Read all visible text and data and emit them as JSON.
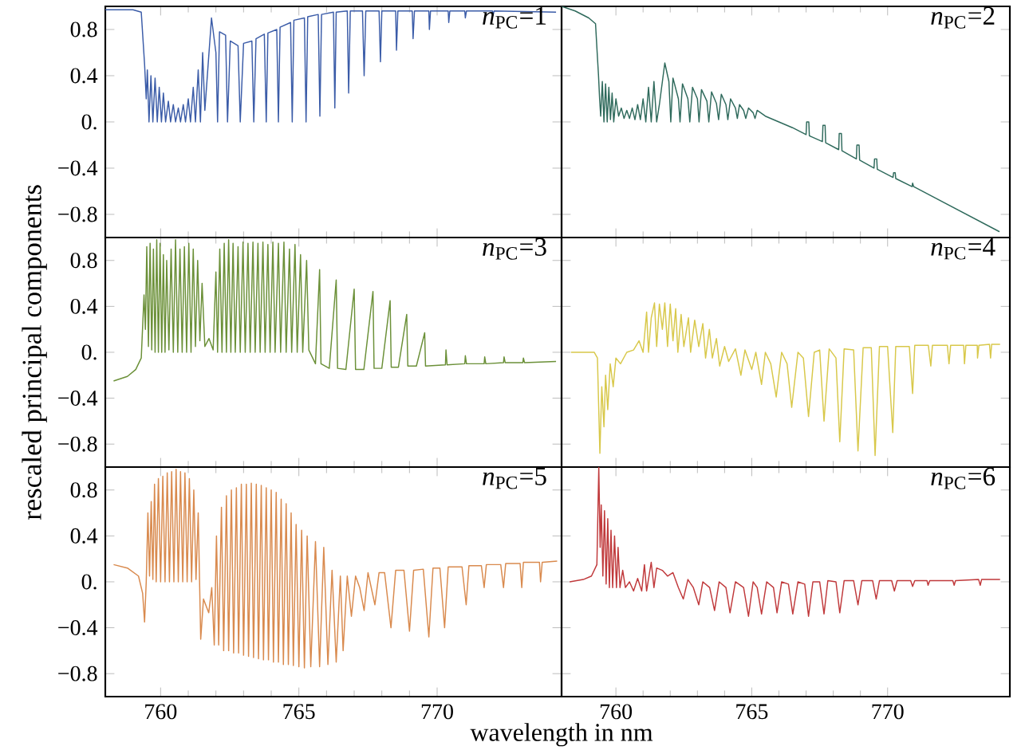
{
  "chart_data": [
    {
      "type": "line",
      "title": "*n*$_{PC}$=1",
      "color": "#3b5ca8",
      "xlim": [
        758,
        774.5
      ],
      "ylim": [
        -1,
        1
      ],
      "xticks": [
        760,
        765,
        770
      ],
      "yticks": [
        {
          "value": -0.8,
          "label": "−0.8"
        },
        {
          "value": -0.4,
          "label": "−0.4"
        },
        {
          "value": 0,
          "label": "0."
        },
        {
          "value": 0.4,
          "label": "0.4"
        },
        {
          "value": 0.8,
          "label": "0.8"
        }
      ],
      "tick_labels": "y",
      "x": [
        758,
        759,
        759.3,
        759.42,
        759.48,
        759.52,
        759.58,
        759.65,
        759.72,
        759.8,
        759.88,
        759.95,
        760.03,
        760.1,
        760.18,
        760.28,
        760.36,
        760.46,
        760.54,
        760.64,
        760.72,
        760.82,
        760.9,
        761.0,
        761.08,
        761.18,
        761.26,
        761.36,
        761.44,
        761.52,
        761.6,
        761.84,
        762.0,
        762.06,
        762.13,
        762.35,
        762.42,
        762.52,
        762.8,
        762.88,
        763.0,
        763.3,
        763.37,
        763.45,
        763.75,
        763.82,
        763.88,
        764.2,
        764.26,
        764.32,
        764.7,
        764.76,
        764.82,
        765.2,
        765.26,
        765.32,
        765.7,
        765.76,
        765.82,
        766.25,
        766.3,
        766.35,
        766.75,
        766.8,
        766.86,
        767.3,
        767.36,
        767.42,
        767.9,
        767.95,
        768.0,
        768.5,
        768.53,
        768.58,
        769.1,
        769.13,
        769.18,
        769.7,
        769.72,
        769.76,
        770.4,
        770.42,
        770.46,
        771.0,
        771.02,
        771.06,
        772,
        772.02,
        772.06,
        774.3
      ],
      "values": [
        0.97,
        0.97,
        0.95,
        0.5,
        0.2,
        0.45,
        0,
        0.4,
        0,
        0.38,
        0,
        0.3,
        0,
        0.25,
        0,
        0.18,
        0,
        0.15,
        0,
        0.12,
        0,
        0.15,
        0,
        0.2,
        0,
        0.3,
        0,
        0.45,
        0,
        0.6,
        0.1,
        0.9,
        0.6,
        0,
        0.78,
        0.75,
        0,
        0.7,
        0.66,
        0,
        0.68,
        0.7,
        0,
        0.72,
        0.76,
        0,
        0.77,
        0.8,
        0,
        0.82,
        0.86,
        0,
        0.88,
        0.9,
        0,
        0.91,
        0.93,
        0.05,
        0.93,
        0.95,
        0.12,
        0.95,
        0.96,
        0.25,
        0.96,
        0.96,
        0.4,
        0.96,
        0.96,
        0.52,
        0.96,
        0.96,
        0.62,
        0.96,
        0.96,
        0.72,
        0.96,
        0.96,
        0.8,
        0.96,
        0.96,
        0.86,
        0.96,
        0.96,
        0.9,
        0.96,
        0.96,
        0.92,
        0.96,
        0.95
      ]
    },
    {
      "type": "line",
      "title": "*n*$_{PC}$=2",
      "color": "#2f6a5c",
      "xlim": [
        758,
        774.5
      ],
      "ylim": [
        -1,
        1
      ],
      "xticks": [
        760,
        765,
        770
      ],
      "yticks": [
        -0.8,
        -0.4,
        0,
        0.4,
        0.8
      ],
      "tick_labels": false,
      "x": [
        758.0,
        758.5,
        759.0,
        759.25,
        759.31,
        759.36,
        759.4,
        759.44,
        759.5,
        759.56,
        759.62,
        759.68,
        759.74,
        759.8,
        759.86,
        759.92,
        760.0,
        760.1,
        760.2,
        760.3,
        760.4,
        760.5,
        760.6,
        760.7,
        760.8,
        760.9,
        761.0,
        761.1,
        761.2,
        761.3,
        761.4,
        761.5,
        761.6,
        761.8,
        761.95,
        762.02,
        762.1,
        762.3,
        762.36,
        762.45,
        762.65,
        762.72,
        762.82,
        763.0,
        763.06,
        763.15,
        763.35,
        763.42,
        763.52,
        763.7,
        763.78,
        763.88,
        764.05,
        764.12,
        764.22,
        764.4,
        764.47,
        764.55,
        764.7,
        764.78,
        764.88,
        765.05,
        765.12,
        765.2,
        765.5,
        766.0,
        766.5,
        767.0,
        767.02,
        767.1,
        767.12,
        767.6,
        767.62,
        767.7,
        767.72,
        768.2,
        768.22,
        768.3,
        768.32,
        768.85,
        768.87,
        768.95,
        768.97,
        769.5,
        769.52,
        769.6,
        769.62,
        770.2,
        770.22,
        770.28,
        770.3,
        770.9,
        770.92,
        770.96,
        774.12
      ],
      "values": [
        1.0,
        0.96,
        0.9,
        0.85,
        0.6,
        0.4,
        0.2,
        0.05,
        0.35,
        0.0,
        0.33,
        0.0,
        0.3,
        0.02,
        0.25,
        0.0,
        0.2,
        0.05,
        0.12,
        0.03,
        0.1,
        0.03,
        0.12,
        0.02,
        0.15,
        0.02,
        0.2,
        0.0,
        0.3,
        0.0,
        0.35,
        0.0,
        0.15,
        0.51,
        0.35,
        0.0,
        0.38,
        0.2,
        0.0,
        0.33,
        0.2,
        0.0,
        0.3,
        0.2,
        0.0,
        0.28,
        0.18,
        0.0,
        0.26,
        0.16,
        0.02,
        0.24,
        0.15,
        0.02,
        0.2,
        0.12,
        0.03,
        0.15,
        0.1,
        0.03,
        0.12,
        0.08,
        0.03,
        0.1,
        0.05,
        0.0,
        -0.05,
        -0.11,
        0.0,
        0.0,
        -0.12,
        -0.17,
        -0.03,
        -0.03,
        -0.18,
        -0.24,
        -0.1,
        -0.1,
        -0.25,
        -0.32,
        -0.2,
        -0.2,
        -0.33,
        -0.4,
        -0.32,
        -0.32,
        -0.41,
        -0.48,
        -0.44,
        -0.44,
        -0.49,
        -0.56,
        -0.53,
        -0.56,
        -0.95
      ]
    },
    {
      "type": "line",
      "title": "*n*$_{PC}$=3",
      "ylabel": "rescaled principal components",
      "color": "#6b9038",
      "xlim": [
        758,
        774.5
      ],
      "ylim": [
        -1,
        1
      ],
      "xticks": [
        760,
        765,
        770
      ],
      "yticks": [
        {
          "value": -0.8,
          "label": "−0.8"
        },
        {
          "value": -0.4,
          "label": "−0.4"
        },
        {
          "value": 0,
          "label": "0."
        },
        {
          "value": 0.4,
          "label": "0.4"
        },
        {
          "value": 0.8,
          "label": "0.8"
        }
      ],
      "tick_labels": "y",
      "x": [
        758.3,
        758.8,
        759.1,
        759.3,
        759.4,
        759.45,
        759.5,
        759.56,
        759.62,
        759.68,
        759.74,
        759.8,
        759.86,
        759.92,
        759.98,
        760.04,
        760.1,
        760.16,
        760.22,
        760.3,
        760.38,
        760.46,
        760.54,
        760.62,
        760.7,
        760.78,
        760.86,
        760.94,
        761.02,
        761.1,
        761.18,
        761.26,
        761.34,
        761.42,
        761.5,
        761.6,
        761.75,
        761.9,
        762.0,
        762.06,
        762.14,
        762.22,
        762.3,
        762.38,
        762.46,
        762.54,
        762.62,
        762.7,
        762.8,
        762.88,
        762.98,
        763.06,
        763.16,
        763.24,
        763.34,
        763.42,
        763.52,
        763.6,
        763.7,
        763.78,
        763.88,
        763.96,
        764.06,
        764.14,
        764.26,
        764.34,
        764.46,
        764.54,
        764.66,
        764.74,
        764.86,
        764.94,
        765.06,
        765.14,
        765.28,
        765.36,
        765.6,
        765.75,
        765.8,
        766.1,
        766.35,
        766.4,
        766.7,
        767.0,
        767.05,
        767.35,
        767.68,
        767.72,
        768.0,
        768.3,
        768.34,
        768.6,
        768.9,
        768.94,
        769.25,
        769.55,
        769.58,
        770.3,
        770.32,
        770.36,
        771.0,
        771.02,
        771.06,
        771.7,
        771.72,
        771.76,
        772.4,
        772.42,
        772.46,
        773.1,
        773.12,
        773.16,
        774.3
      ],
      "values": [
        -0.25,
        -0.21,
        -0.15,
        -0.05,
        0.5,
        0.2,
        0.92,
        0.05,
        0.95,
        0.02,
        0.9,
        0.0,
        0.98,
        0.0,
        0.95,
        0.0,
        0.85,
        0.0,
        0.8,
        0.02,
        0.9,
        0.0,
        0.98,
        0.0,
        0.9,
        0.0,
        0.92,
        0.0,
        0.95,
        0.0,
        0.9,
        0.05,
        0.8,
        0.1,
        0.6,
        0.05,
        0.12,
        0.02,
        0.7,
        0.0,
        0.9,
        0.0,
        0.95,
        0.0,
        0.98,
        0.0,
        0.95,
        0.0,
        0.92,
        0.0,
        0.96,
        0.0,
        0.95,
        0.0,
        0.96,
        0.0,
        0.95,
        0.0,
        0.96,
        0.0,
        0.94,
        0.0,
        0.96,
        0.0,
        0.95,
        0.0,
        0.96,
        0.0,
        0.9,
        0.0,
        0.94,
        0.0,
        0.85,
        0.0,
        0.8,
        0.02,
        -0.1,
        0.72,
        -0.1,
        -0.14,
        0.63,
        -0.14,
        -0.15,
        0.55,
        -0.15,
        -0.15,
        0.53,
        -0.14,
        -0.14,
        0.45,
        -0.13,
        -0.13,
        0.33,
        -0.12,
        -0.12,
        0.17,
        -0.12,
        -0.11,
        0.02,
        -0.11,
        -0.1,
        -0.03,
        -0.1,
        -0.1,
        -0.04,
        -0.1,
        -0.09,
        -0.04,
        -0.09,
        -0.09,
        -0.05,
        -0.09,
        -0.08
      ]
    },
    {
      "type": "line",
      "title": "*n*$_{PC}$=4",
      "color": "#d8c84a",
      "xlim": [
        758,
        774.5
      ],
      "ylim": [
        -1,
        1
      ],
      "xticks": [
        760,
        765,
        770
      ],
      "yticks": [
        -0.8,
        -0.4,
        0,
        0.4,
        0.8
      ],
      "tick_labels": false,
      "x": [
        758.35,
        759.2,
        759.32,
        759.41,
        759.48,
        759.56,
        759.62,
        759.7,
        759.79,
        759.9,
        760.0,
        760.17,
        760.4,
        760.65,
        760.85,
        761.0,
        761.13,
        761.2,
        761.3,
        761.42,
        761.5,
        761.6,
        761.71,
        761.8,
        761.9,
        762.0,
        762.1,
        762.2,
        762.28,
        762.4,
        762.5,
        762.67,
        762.75,
        762.9,
        763.05,
        763.2,
        763.3,
        763.44,
        763.55,
        763.7,
        763.82,
        764.0,
        764.15,
        764.4,
        764.6,
        764.75,
        765.0,
        765.15,
        765.36,
        765.5,
        765.7,
        765.9,
        766.1,
        766.3,
        766.47,
        766.7,
        766.9,
        767.09,
        767.3,
        767.5,
        767.66,
        767.85,
        768.1,
        768.24,
        768.4,
        768.75,
        768.91,
        769.1,
        769.4,
        769.54,
        769.7,
        770.0,
        770.19,
        770.3,
        770.8,
        770.92,
        771.0,
        771.5,
        771.59,
        771.65,
        772.2,
        772.26,
        772.32,
        772.8,
        772.83,
        772.88,
        773.3,
        773.31,
        773.36,
        773.75,
        773.79,
        773.83,
        774.14
      ],
      "values": [
        0,
        0,
        -0.05,
        -0.88,
        -0.3,
        -0.65,
        -0.2,
        -0.5,
        -0.1,
        -0.3,
        -0.05,
        -0.1,
        0.0,
        0.02,
        0.1,
        0.0,
        0.35,
        0.0,
        0.3,
        0.43,
        0.05,
        0.42,
        0.2,
        0.43,
        0.05,
        0.42,
        0.1,
        0.38,
        0.0,
        0.33,
        0.05,
        0.3,
        0.0,
        0.28,
        0.05,
        0.25,
        -0.05,
        0.2,
        -0.05,
        0.12,
        -0.12,
        0.05,
        -0.08,
        0.03,
        -0.2,
        0.02,
        -0.15,
        0.0,
        -0.28,
        0.0,
        -0.1,
        -0.39,
        0.0,
        -0.1,
        -0.48,
        0.0,
        -0.05,
        -0.56,
        0.0,
        0.02,
        -0.6,
        0.03,
        -0.05,
        -0.78,
        0.03,
        0.02,
        -0.86,
        0.04,
        0.04,
        -0.9,
        0.05,
        0.05,
        -0.7,
        0.05,
        0.05,
        -0.36,
        0.06,
        0.06,
        -0.12,
        0.06,
        0.06,
        -0.1,
        0.06,
        0.06,
        -0.1,
        0.06,
        0.06,
        -0.05,
        0.06,
        0.07,
        -0.05,
        0.07,
        0.07
      ]
    },
    {
      "type": "line",
      "title": "*n*$_{PC}$=5",
      "xlabel": "wavelength in nm",
      "color": "#d98a4e",
      "xlim": [
        758,
        774.5
      ],
      "ylim": [
        -1,
        1
      ],
      "xticks": [
        760,
        765,
        770
      ],
      "yticks": [
        {
          "value": -0.8,
          "label": "−0.8"
        },
        {
          "value": -0.4,
          "label": "−0.4"
        },
        {
          "value": 0,
          "label": "0."
        },
        {
          "value": 0.4,
          "label": "0.4"
        },
        {
          "value": 0.8,
          "label": "0.8"
        }
      ],
      "x": [
        758.3,
        758.8,
        759.2,
        759.35,
        759.42,
        759.48,
        759.54,
        759.6,
        759.66,
        759.72,
        759.78,
        759.84,
        759.92,
        760.0,
        760.08,
        760.16,
        760.24,
        760.32,
        760.4,
        760.48,
        760.56,
        760.64,
        760.72,
        760.8,
        760.88,
        760.96,
        761.04,
        761.12,
        761.2,
        761.28,
        761.36,
        761.45,
        761.55,
        761.74,
        761.85,
        761.94,
        762.02,
        762.1,
        762.2,
        762.28,
        762.38,
        762.46,
        762.56,
        762.64,
        762.74,
        762.82,
        762.92,
        763.0,
        763.1,
        763.18,
        763.28,
        763.36,
        763.46,
        763.54,
        763.64,
        763.72,
        763.82,
        763.9,
        764.0,
        764.08,
        764.18,
        764.26,
        764.36,
        764.44,
        764.54,
        764.62,
        764.72,
        764.8,
        764.9,
        765.0,
        765.1,
        765.2,
        765.3,
        765.43,
        765.6,
        765.75,
        765.9,
        766.05,
        766.2,
        766.35,
        766.5,
        766.6,
        766.75,
        766.9,
        767.05,
        767.2,
        767.36,
        767.5,
        767.75,
        767.9,
        768.1,
        768.33,
        768.5,
        768.8,
        769.0,
        769.15,
        769.5,
        769.7,
        769.85,
        770.1,
        770.27,
        770.4,
        770.9,
        771.05,
        771.15,
        771.6,
        771.7,
        771.78,
        772.3,
        772.4,
        772.48,
        773.0,
        773.06,
        773.12,
        773.7,
        773.74,
        773.8,
        774.34
      ],
      "values": [
        0.15,
        0.12,
        0.05,
        -0.1,
        -0.35,
        0.0,
        0.6,
        0.05,
        0.7,
        0.02,
        0.85,
        0.0,
        0.9,
        0.0,
        0.92,
        0.0,
        0.95,
        0.0,
        0.96,
        0.0,
        0.98,
        0.0,
        0.96,
        0.0,
        0.95,
        0.0,
        0.9,
        0.0,
        0.8,
        0.02,
        0.6,
        -0.5,
        -0.15,
        -0.27,
        -0.05,
        -0.55,
        0.4,
        -0.55,
        0.65,
        -0.6,
        0.75,
        -0.6,
        0.8,
        -0.62,
        0.82,
        -0.62,
        0.85,
        -0.64,
        0.85,
        -0.65,
        0.86,
        -0.66,
        0.85,
        -0.67,
        0.84,
        -0.68,
        0.82,
        -0.68,
        0.8,
        -0.7,
        0.78,
        -0.7,
        0.72,
        -0.72,
        0.68,
        -0.72,
        0.6,
        -0.73,
        0.5,
        -0.74,
        0.45,
        -0.75,
        0.4,
        -0.74,
        0.35,
        -0.74,
        0.3,
        -0.72,
        0.1,
        -0.7,
        0.05,
        -0.6,
        0.05,
        -0.3,
        0.05,
        -0.05,
        -0.25,
        0.08,
        -0.2,
        0.08,
        0.08,
        -0.4,
        0.1,
        0.1,
        -0.43,
        0.1,
        0.11,
        -0.48,
        0.12,
        0.12,
        -0.4,
        0.13,
        0.13,
        -0.2,
        0.14,
        0.14,
        -0.05,
        0.15,
        0.15,
        -0.05,
        0.16,
        0.16,
        -0.05,
        0.17,
        0.17,
        0.0,
        0.17,
        0.18
      ]
    },
    {
      "type": "line",
      "title": "*n*$_{PC}$=6",
      "color": "#c0393b",
      "xlim": [
        758,
        774.5
      ],
      "ylim": [
        -1,
        1
      ],
      "xticks": [
        760,
        765,
        770
      ],
      "yticks": [
        -0.8,
        -0.4,
        0,
        0.4,
        0.8
      ],
      "tick_labels": "x",
      "x": [
        758.3,
        758.8,
        759.1,
        759.3,
        759.37,
        759.42,
        759.46,
        759.52,
        759.58,
        759.64,
        759.7,
        759.76,
        759.82,
        759.88,
        759.95,
        760.02,
        760.08,
        760.15,
        760.25,
        760.35,
        760.5,
        760.65,
        760.8,
        760.95,
        761.05,
        761.13,
        761.3,
        761.4,
        761.5,
        761.71,
        761.9,
        762.1,
        762.3,
        762.48,
        762.65,
        762.85,
        763.05,
        763.2,
        763.45,
        763.63,
        763.8,
        764.05,
        764.2,
        764.4,
        764.7,
        764.88,
        765.05,
        765.2,
        765.36,
        765.55,
        765.8,
        765.93,
        766.1,
        766.35,
        766.51,
        766.7,
        766.95,
        767.09,
        767.25,
        767.5,
        767.66,
        767.8,
        768.1,
        768.24,
        768.4,
        768.75,
        768.91,
        769.05,
        769.45,
        769.58,
        769.7,
        770.15,
        770.25,
        770.35,
        770.85,
        770.92,
        771.0,
        771.45,
        771.49,
        771.55,
        772.4,
        772.45,
        772.5,
        773.35,
        773.41,
        773.46,
        774.14
      ],
      "values": [
        0,
        0.02,
        0.05,
        0.15,
        1.0,
        0.3,
        0.67,
        0.05,
        0.62,
        -0.02,
        0.55,
        -0.05,
        0.45,
        -0.05,
        0.4,
        -0.05,
        0.3,
        -0.05,
        0.1,
        -0.05,
        0.0,
        -0.08,
        0.03,
        -0.08,
        0.15,
        -0.08,
        0.17,
        -0.05,
        0.12,
        0.1,
        0.05,
        0.08,
        -0.05,
        -0.15,
        0.02,
        -0.05,
        -0.2,
        0.0,
        -0.05,
        -0.25,
        0.0,
        -0.05,
        -0.27,
        0.0,
        -0.05,
        -0.3,
        0.0,
        -0.05,
        -0.28,
        0.0,
        -0.05,
        -0.27,
        0.0,
        -0.02,
        -0.28,
        0.0,
        -0.02,
        -0.3,
        0.0,
        0.0,
        -0.28,
        0.01,
        0.0,
        -0.27,
        0.01,
        0.01,
        -0.2,
        0.01,
        0.01,
        -0.15,
        0.01,
        0.01,
        -0.08,
        0.01,
        0.01,
        -0.04,
        0.01,
        0.01,
        -0.03,
        0.01,
        0.01,
        -0.03,
        0.01,
        0.02,
        -0.03,
        0.02,
        0.02
      ]
    }
  ]
}
